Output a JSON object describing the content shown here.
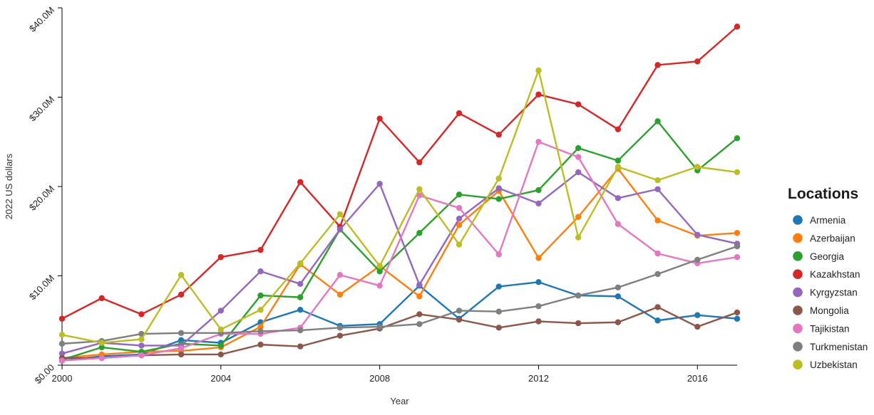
{
  "chart_data": {
    "type": "line",
    "xlabel": "Year",
    "ylabel": "2022 US dollars",
    "x": [
      2000,
      2001,
      2002,
      2003,
      2004,
      2005,
      2006,
      2007,
      2008,
      2009,
      2010,
      2011,
      2012,
      2013,
      2014,
      2015,
      2016,
      2017
    ],
    "xlim": [
      2000,
      2017
    ],
    "ylim": [
      0,
      40
    ],
    "x_ticks": [
      2000,
      2004,
      2008,
      2012,
      2016
    ],
    "y_ticks": [
      0,
      10,
      20,
      30,
      40
    ],
    "y_tick_labels": [
      "$0.00",
      "$10.0M",
      "$20.0M",
      "$30.0M",
      "$40.0M"
    ],
    "legend": {
      "title": "Locations",
      "placement": "right"
    },
    "grid": false,
    "series": [
      {
        "name": "Armenia",
        "color": "#1f77b4",
        "values": [
          0.5,
          1.0,
          1.2,
          2.8,
          2.5,
          4.8,
          6.2,
          4.4,
          4.6,
          8.9,
          5.2,
          8.8,
          9.3,
          7.8,
          7.7,
          5.0,
          5.6,
          5.2
        ]
      },
      {
        "name": "Azerbaijan",
        "color": "#ff7f0e",
        "values": [
          0.8,
          1.2,
          1.5,
          1.6,
          2.0,
          4.3,
          11.3,
          7.9,
          11.1,
          7.7,
          15.7,
          19.5,
          12.0,
          16.6,
          22.0,
          16.2,
          14.5,
          14.8
        ]
      },
      {
        "name": "Georgia",
        "color": "#2ca02c",
        "values": [
          0.6,
          2.0,
          1.5,
          2.4,
          2.2,
          7.8,
          7.6,
          15.2,
          10.5,
          14.8,
          19.1,
          18.6,
          19.6,
          24.3,
          22.9,
          27.3,
          21.8,
          25.4
        ]
      },
      {
        "name": "Kazakhstan",
        "color": "#d62728",
        "values": [
          5.2,
          7.5,
          5.7,
          7.9,
          12.1,
          12.9,
          20.5,
          15.5,
          27.6,
          22.7,
          28.2,
          25.8,
          30.3,
          29.2,
          26.4,
          33.6,
          34.0,
          37.9
        ]
      },
      {
        "name": "Kyrgyzstan",
        "color": "#9467bd",
        "values": [
          1.3,
          2.5,
          2.2,
          2.2,
          6.1,
          10.5,
          9.1,
          15.2,
          20.3,
          9.0,
          16.4,
          19.8,
          18.1,
          21.6,
          18.7,
          19.7,
          14.6,
          13.6
        ]
      },
      {
        "name": "Mongolia",
        "color": "#8c564b",
        "values": [
          0.8,
          0.8,
          1.1,
          1.2,
          1.2,
          2.3,
          2.1,
          3.3,
          4.1,
          5.7,
          5.1,
          4.2,
          4.9,
          4.7,
          4.8,
          6.5,
          4.3,
          5.9
        ]
      },
      {
        "name": "Tajikistan",
        "color": "#e377c2",
        "values": [
          0.5,
          0.8,
          1.1,
          1.9,
          3.5,
          3.5,
          4.2,
          10.1,
          8.9,
          19.0,
          17.6,
          12.4,
          25.0,
          23.3,
          15.8,
          12.5,
          11.4,
          12.1
        ]
      },
      {
        "name": "Turkmenistan",
        "color": "#7f7f7f",
        "values": [
          2.4,
          2.7,
          3.5,
          3.6,
          3.6,
          3.8,
          3.9,
          4.2,
          4.3,
          4.6,
          6.1,
          6.0,
          6.6,
          7.8,
          8.7,
          10.2,
          11.8,
          13.3
        ]
      },
      {
        "name": "Uzbekistan",
        "color": "#bcbd22",
        "values": [
          3.4,
          2.5,
          2.9,
          10.1,
          4.0,
          6.2,
          11.4,
          16.9,
          11.1,
          19.7,
          13.5,
          20.9,
          33.0,
          14.3,
          22.2,
          20.7,
          22.2,
          21.6
        ]
      }
    ]
  }
}
